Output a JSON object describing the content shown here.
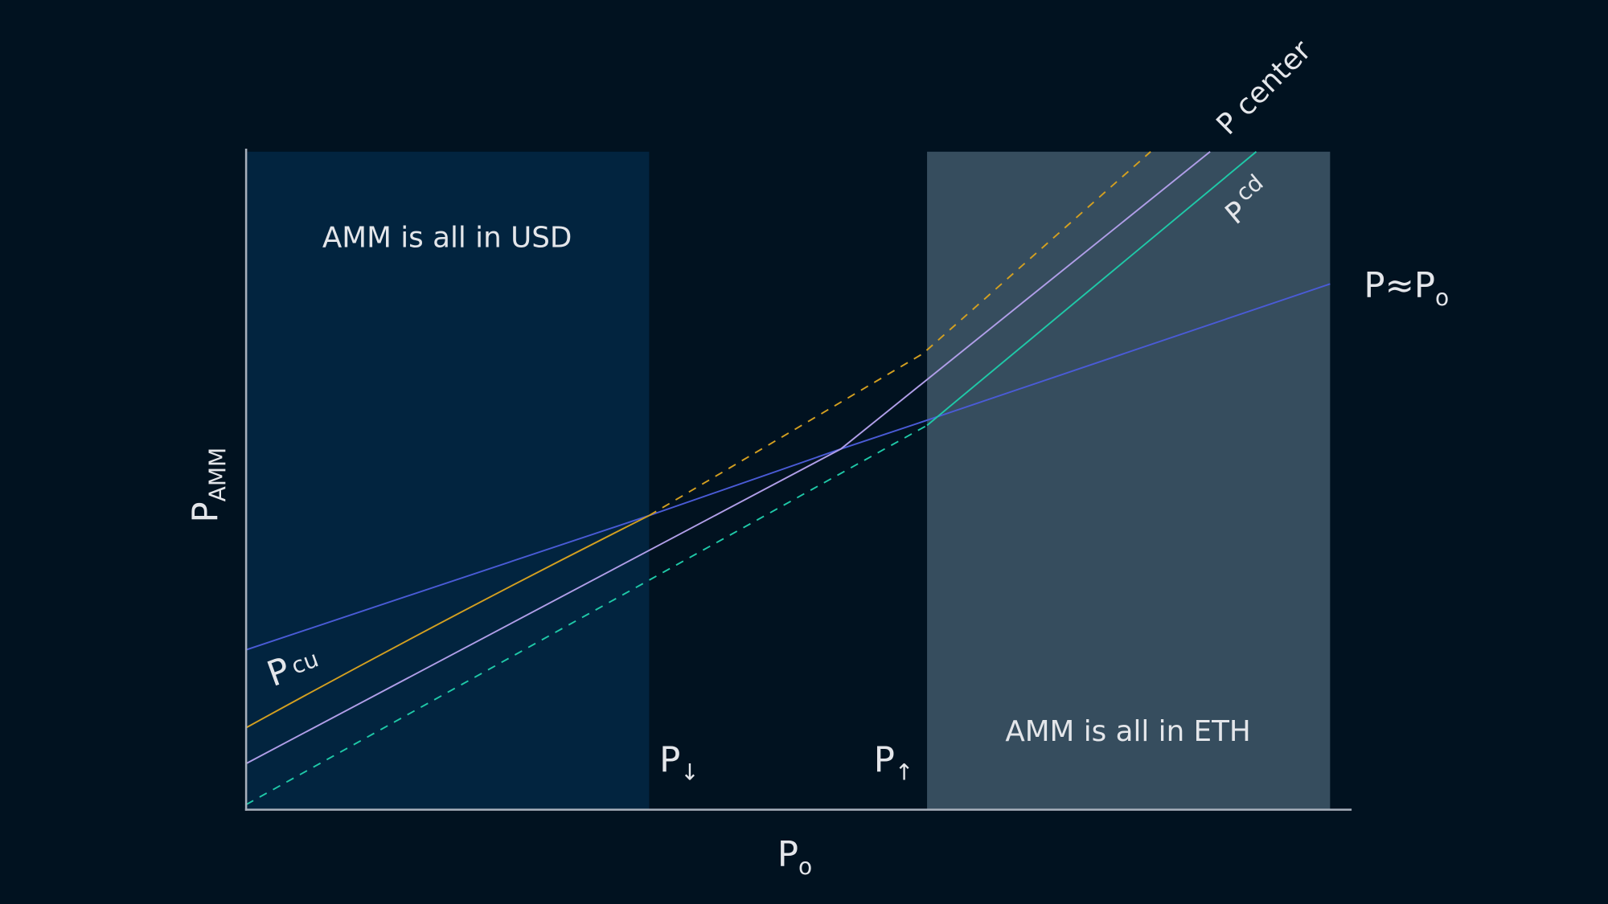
{
  "regions": [
    {
      "label": "AMM is all in USD"
    },
    {
      "label": "AMM is all in ETH"
    }
  ],
  "curves": [
    {
      "main": "P center"
    },
    {
      "main": "P",
      "sub": "cd"
    },
    {
      "main": "P≈P",
      "sub": "o"
    },
    {
      "main": "P",
      "sub": "cu"
    }
  ],
  "markers": [
    {
      "main": "P",
      "sub": "↓"
    },
    {
      "main": "P",
      "sub": "↑"
    }
  ],
  "axes": {
    "y": {
      "main": "P",
      "sub": "AMM"
    },
    "x": {
      "main": "P",
      "sub": "o"
    }
  }
}
